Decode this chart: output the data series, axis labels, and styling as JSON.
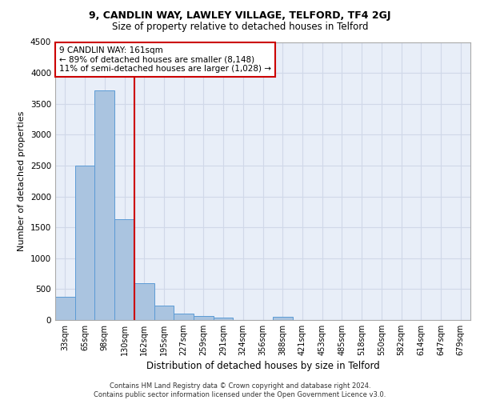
{
  "title1": "9, CANDLIN WAY, LAWLEY VILLAGE, TELFORD, TF4 2GJ",
  "title2": "Size of property relative to detached houses in Telford",
  "xlabel": "Distribution of detached houses by size in Telford",
  "ylabel": "Number of detached properties",
  "categories": [
    "33sqm",
    "65sqm",
    "98sqm",
    "130sqm",
    "162sqm",
    "195sqm",
    "227sqm",
    "259sqm",
    "291sqm",
    "324sqm",
    "356sqm",
    "388sqm",
    "421sqm",
    "453sqm",
    "485sqm",
    "518sqm",
    "550sqm",
    "582sqm",
    "614sqm",
    "647sqm",
    "679sqm"
  ],
  "values": [
    370,
    2500,
    3720,
    1630,
    590,
    235,
    105,
    60,
    35,
    0,
    0,
    55,
    0,
    0,
    0,
    0,
    0,
    0,
    0,
    0,
    0
  ],
  "bar_color": "#aac4e0",
  "bar_edgecolor": "#5b9bd5",
  "vline_x_index": 4,
  "vline_color": "#cc0000",
  "annotation_text": "9 CANDLIN WAY: 161sqm\n← 89% of detached houses are smaller (8,148)\n11% of semi-detached houses are larger (1,028) →",
  "annotation_box_color": "#ffffff",
  "annotation_box_edgecolor": "#cc0000",
  "ylim": [
    0,
    4500
  ],
  "yticks": [
    0,
    500,
    1000,
    1500,
    2000,
    2500,
    3000,
    3500,
    4000,
    4500
  ],
  "grid_color": "#d0d8e8",
  "bg_color": "#e8eef8",
  "footer": "Contains HM Land Registry data © Crown copyright and database right 2024.\nContains public sector information licensed under the Open Government Licence v3.0.",
  "title1_fontsize": 9,
  "title2_fontsize": 8.5,
  "xlabel_fontsize": 8.5,
  "ylabel_fontsize": 8,
  "annotation_fontsize": 7.5,
  "tick_fontsize": 7,
  "ytick_fontsize": 7.5,
  "footer_fontsize": 6
}
